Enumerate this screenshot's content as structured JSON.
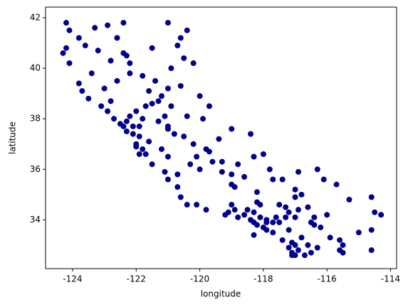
{
  "chart_data": {
    "type": "scatter",
    "xlabel": "longitude",
    "ylabel": "latitude",
    "color": "#00008b",
    "xlim": [
      -124.85,
      -113.81
    ],
    "ylim": [
      32.07,
      42.42
    ],
    "xticks": [
      -124,
      -122,
      -120,
      -118,
      -116,
      -114
    ],
    "yticks": [
      34,
      36,
      38,
      40,
      42
    ],
    "x": [
      -124.2,
      -124.1,
      -124.2,
      -124.3,
      -124.1,
      -123.8,
      -123.7,
      -123.5,
      -123.1,
      -122.9,
      -122.7,
      -122.5,
      -122.4,
      -122.3,
      -122.1,
      -121.9,
      -122.0,
      -121.8,
      -121.7,
      -121.9,
      -121.5,
      -121.0,
      -120.7,
      -120.6,
      -120.4,
      -119.8,
      -119.2,
      -118.8,
      -118.4,
      -118.3,
      -118.2,
      -118.0,
      -117.9,
      -117.7,
      -117.4,
      -117.2,
      -117.1,
      -117.0,
      -116.9,
      -116.5,
      -115.6,
      -115.5,
      -115.5,
      -115.6,
      -116.2,
      -116.4,
      -116.5,
      -117.0,
      -117.3,
      -117.6,
      -117.3,
      -117.0,
      -116.8,
      -117.7,
      -118.2,
      -118.1,
      -118.2,
      -114.6,
      -114.5,
      -114.3,
      -114.6,
      -114.6,
      -115.0,
      -121.5,
      -121.3,
      -121.2,
      -121.6,
      -121.8,
      -122.2,
      -122.4,
      -122.3,
      -122.6,
      -122.4,
      -121.0,
      -120.4,
      -120.5,
      -120.9,
      -121.0,
      -120.6,
      -120.0,
      -120.4,
      -121.0,
      -120.8,
      -120.5,
      -120.2,
      -119.8,
      -119.7,
      -119.3,
      -119.0,
      -119.0,
      -118.9,
      -118.6,
      -119.4,
      -119.0,
      -118.4,
      -118.0,
      -117.8,
      -117.4,
      -116.9,
      -116.3,
      -115.7,
      -116.0,
      -117.0,
      -116.1,
      -118.9,
      -119.1,
      -120.0,
      -120.3,
      -121.0,
      -121.7,
      -122.0,
      -122.2,
      -122.3,
      -122.1,
      -121.9,
      -121.8,
      -121.3,
      -121.0,
      -122.8,
      -123.0,
      -122.6,
      -122.2,
      -122.8,
      -123.2,
      -123.6,
      -123.8,
      -123.3,
      -122.9,
      -121.5,
      -120.6,
      -120.2,
      -120.7,
      -123.4,
      -121.4,
      -120.9,
      -121.1,
      -119.7,
      -119.9,
      -117.9,
      -118.1,
      -117.5,
      -117.2,
      -117.1,
      -117.0,
      -116.8,
      -116.6,
      -117.9,
      -118.3,
      -118.5,
      -117.1,
      -116.7,
      -116.3,
      -115.9,
      -117.7,
      -116.9,
      -117.2,
      -116.4,
      -118.6,
      -119.6,
      -120.1,
      -119.3,
      -118.8,
      -118.3,
      -120.1,
      -121.1,
      -122.0,
      -121.6,
      -121.2,
      -120.7,
      -119.0,
      -117.5,
      -116.6,
      -115.3,
      -118.3
    ],
    "y": [
      41.8,
      41.5,
      40.8,
      40.6,
      40.2,
      39.4,
      39.1,
      38.8,
      38.5,
      38.3,
      38.0,
      37.8,
      37.7,
      37.5,
      37.4,
      37.3,
      37.0,
      36.8,
      36.6,
      36.6,
      36.2,
      35.6,
      35.3,
      34.9,
      34.6,
      34.4,
      34.2,
      34.1,
      34.0,
      33.9,
      33.8,
      33.7,
      33.6,
      33.5,
      33.2,
      32.9,
      32.7,
      32.6,
      32.8,
      32.7,
      32.8,
      33.0,
      32.7,
      33.2,
      33.7,
      33.8,
      33.9,
      34.1,
      34.1,
      34.1,
      34.5,
      34.9,
      35.0,
      35.6,
      35.1,
      34.6,
      34.7,
      34.9,
      34.3,
      34.2,
      33.6,
      32.8,
      33.5,
      38.6,
      38.7,
      38.9,
      39.1,
      39.7,
      40.2,
      40.6,
      40.5,
      41.2,
      41.8,
      41.8,
      41.5,
      40.4,
      40.0,
      39.2,
      39.3,
      38.9,
      38.1,
      37.6,
      37.4,
      37.3,
      37.0,
      36.8,
      36.7,
      36.3,
      35.8,
      35.4,
      35.3,
      35.7,
      37.2,
      37.6,
      37.4,
      36.6,
      36.0,
      35.6,
      35.9,
      36.0,
      35.4,
      34.2,
      35.2,
      35.6,
      34.4,
      34.3,
      36.0,
      36.2,
      36.5,
      38.5,
      38.3,
      38.1,
      37.9,
      37.7,
      37.7,
      38.0,
      37.9,
      37.7,
      38.7,
      39.2,
      39.5,
      39.8,
      40.3,
      40.7,
      40.9,
      41.2,
      41.6,
      41.7,
      40.8,
      41.2,
      40.2,
      40.9,
      39.8,
      39.5,
      38.5,
      38.1,
      38.5,
      38.0,
      34.0,
      34.1,
      33.9,
      33.6,
      33.1,
      33.0,
      33.3,
      33.0,
      33.9,
      34.3,
      34.4,
      32.6,
      32.6,
      32.9,
      33.3,
      33.9,
      34.4,
      34.3,
      34.1,
      34.2,
      36.3,
      36.5,
      35.9,
      36.2,
      36.5,
      34.6,
      35.9,
      36.9,
      37.1,
      36.8,
      35.8,
      34.6,
      34.6,
      34.5,
      34.8,
      33.4
    ]
  }
}
